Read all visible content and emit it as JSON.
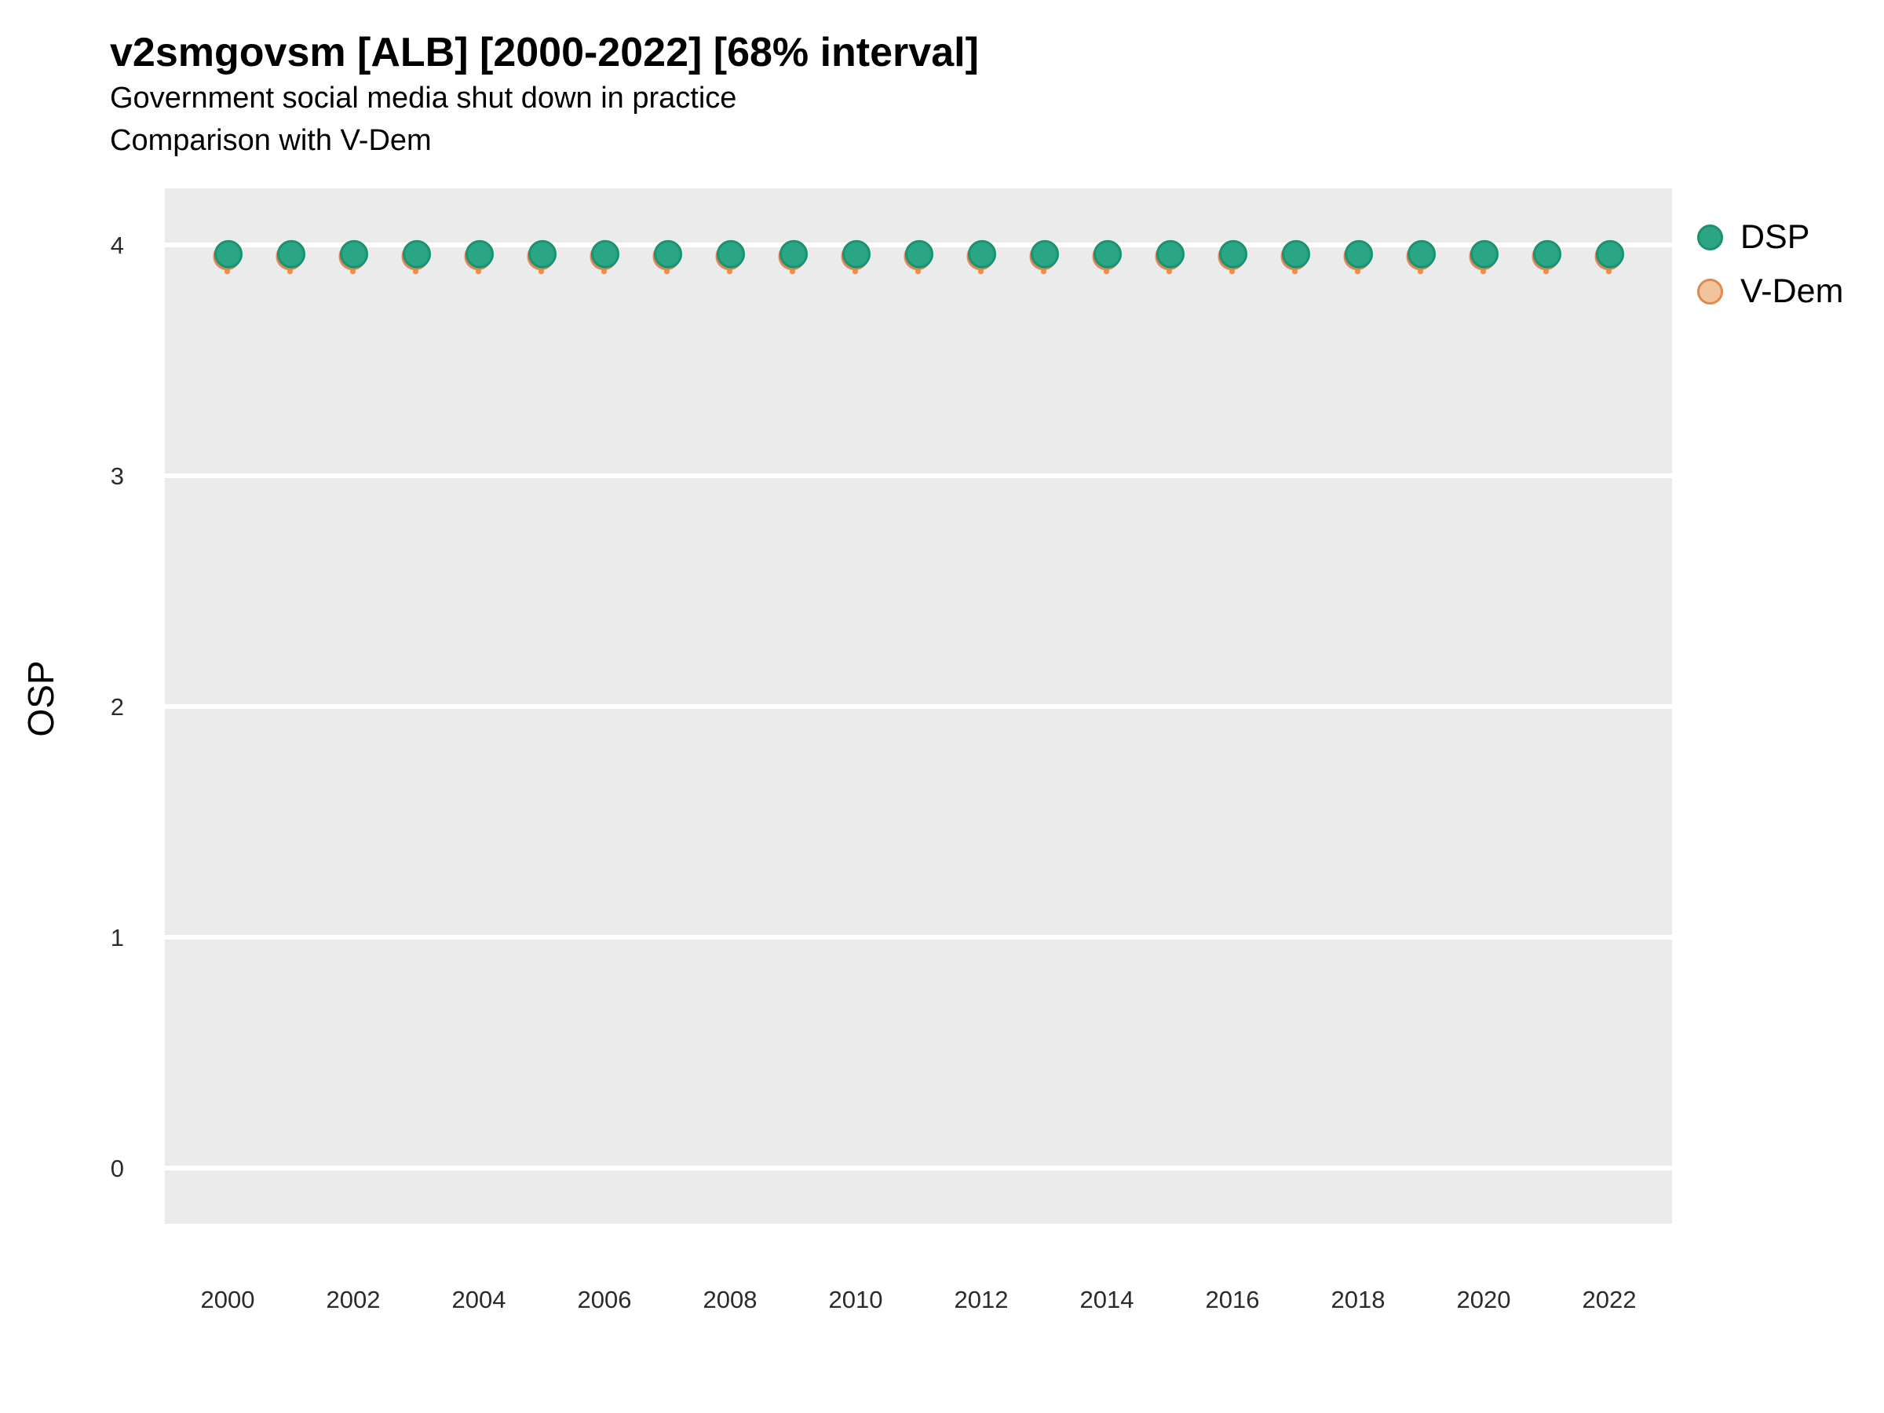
{
  "header": {
    "title": "v2smgovsm [ALB] [2000-2022] [68% interval]",
    "subtitle": "Government social media shut down in practice",
    "comparison_note": "Comparison with V-Dem"
  },
  "axes": {
    "y_label": "OSP",
    "y_ticks": [
      4,
      3,
      2,
      1,
      0
    ],
    "x_ticks": [
      2000,
      2002,
      2004,
      2006,
      2008,
      2010,
      2012,
      2014,
      2016,
      2018,
      2020,
      2022
    ]
  },
  "legend": {
    "items": [
      {
        "label": "DSP",
        "fill": "#2CA584",
        "stroke": "#1A9171"
      },
      {
        "label": "V-Dem",
        "fill": "#F2C49E",
        "stroke": "#E08A50"
      }
    ],
    "position": "right-top"
  },
  "colors": {
    "panel_background": "#EBEBEB",
    "gridline": "#FFFFFF",
    "tick_label": "#2B2B2B",
    "dsp_fill": "#2CA584",
    "dsp_stroke": "#1A9171",
    "vdem_fill": "#F2C49E",
    "vdem_stroke": "#E08A50",
    "vdem_interval": "#E89255"
  },
  "chart_data": {
    "type": "scatter",
    "title": "v2smgovsm [ALB] [2000-2022] [68% interval]",
    "subtitle": "Government social media shut down in practice",
    "annotation": "Comparison with V-Dem",
    "xlabel": "",
    "ylabel": "OSP",
    "x": [
      2000,
      2001,
      2002,
      2003,
      2004,
      2005,
      2006,
      2007,
      2008,
      2009,
      2010,
      2011,
      2012,
      2013,
      2014,
      2015,
      2016,
      2017,
      2018,
      2019,
      2020,
      2021,
      2022
    ],
    "series": [
      {
        "name": "DSP",
        "values": [
          3.96,
          3.96,
          3.96,
          3.96,
          3.96,
          3.96,
          3.96,
          3.96,
          3.96,
          3.96,
          3.96,
          3.96,
          3.96,
          3.96,
          3.96,
          3.96,
          3.96,
          3.96,
          3.96,
          3.96,
          3.96,
          3.96,
          3.96
        ]
      },
      {
        "name": "V-Dem",
        "values": [
          3.95,
          3.95,
          3.95,
          3.95,
          3.95,
          3.95,
          3.95,
          3.95,
          3.95,
          3.95,
          3.95,
          3.95,
          3.95,
          3.95,
          3.95,
          3.95,
          3.95,
          3.95,
          3.95,
          3.95,
          3.95,
          3.95,
          3.95
        ],
        "interval_68_low": [
          3.88,
          3.88,
          3.88,
          3.88,
          3.88,
          3.88,
          3.88,
          3.88,
          3.88,
          3.88,
          3.88,
          3.88,
          3.88,
          3.88,
          3.88,
          3.88,
          3.88,
          3.88,
          3.88,
          3.88,
          3.88,
          3.88,
          3.88
        ],
        "interval_68_high": [
          4.0,
          4.0,
          4.0,
          4.0,
          4.0,
          4.0,
          4.0,
          4.0,
          4.0,
          4.0,
          4.0,
          4.0,
          4.0,
          4.0,
          4.0,
          4.0,
          4.0,
          4.0,
          4.0,
          4.0,
          4.0,
          4.0,
          4.0
        ]
      }
    ],
    "ylim": [
      -0.25,
      4.25
    ],
    "y_ticks": [
      0,
      1,
      2,
      3,
      4
    ],
    "x_tick_step": 2,
    "grid": "major-horizontal-white-on-gray-panel",
    "legend_position": "right-top"
  }
}
